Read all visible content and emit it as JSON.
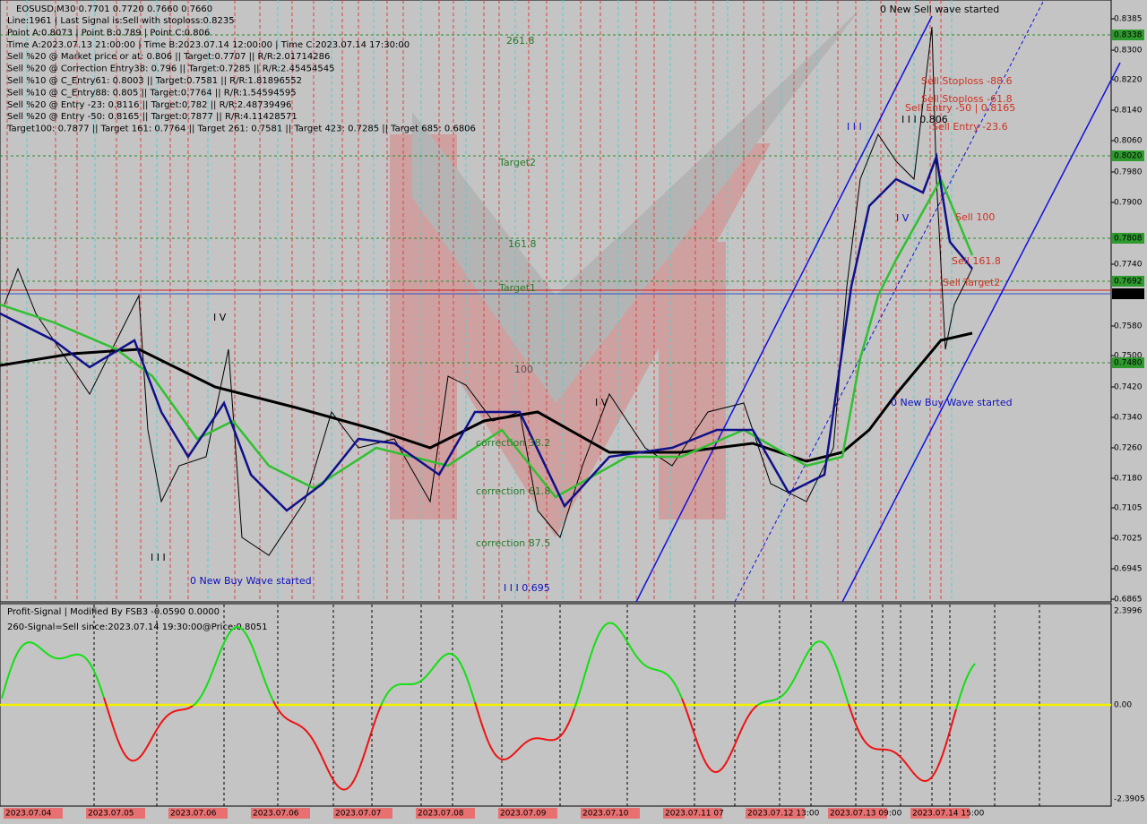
{
  "header": {
    "symbol": "EOSUSD,M30  0.7701 0.7720 0.7660 0.7660",
    "lines": [
      "Line:1961 | Last Signal is:Sell with stoploss:0.8235",
      "Point A:0.8073 | Point B:0.789 | Point C:0.806",
      "Time A:2023.07.13 21:00:00 | Time B:2023.07.14 12:00:00 | Time C:2023.07.14 17:30:00",
      "Sell %20 @ Market price or at: 0.806 || Target:0.7707 || R/R:2.01714286",
      "Sell %20 @ Correction Entry38: 0.796 || Target:0.7285 || R/R:2.45454545",
      "Sell %10 @ C_Entry61: 0.8003 || Target:0.7581 || R/R:1.81896552",
      "Sell %10 @ C_Entry88: 0.805 || Target:0.7764 || R/R:1.54594595",
      "Sell %20 @ Entry -23: 0.8116 || Target:0.782 || R/R:2.48739496",
      "Sell %20 @ Entry -50: 0.8165 || Target:0.7877 || R/R:4.11428571",
      "Target100: 0.7877 || Target 161: 0.7764 || Target 261: 0.7581 || Target 423: 0.7285 || Target 685: 0.6806"
    ]
  },
  "price_axis": [
    "0.8385",
    "0.8300",
    "0.8220",
    "0.8140",
    "0.8060",
    "0.7980",
    "0.7900",
    "0.7740",
    "0.7580",
    "0.7500",
    "0.7420",
    "0.7340",
    "0.7260",
    "0.7180",
    "0.7105",
    "0.7025",
    "0.6945",
    "0.6865"
  ],
  "levels": [
    "0.8338",
    "0.8020",
    "0.7808",
    "0.7692",
    "0.7480"
  ],
  "current_price": "0.7660",
  "annotations": [
    "261.8",
    "Target2",
    "161.8",
    "Target1",
    "100",
    "0 New Sell wave started",
    "Sell Stoploss -88.6",
    "Sell Stoploss -61.8",
    "Sell Entry -50 | 0.8165",
    "Sell Entry -23.6",
    "Sell 100",
    "Sell 161.8",
    "Sell Target2",
    "I I I 0.806",
    "0 New Buy Wave started",
    "0 New Buy Wave started",
    "correction 38.2",
    "correction 61.8",
    "correction 87.5",
    "I I I 0.695",
    "I V",
    "I I I",
    "I V",
    "I I I",
    "I V"
  ],
  "indicator": {
    "title": "Profit-Signal | Modified By FSB3 -0.0590 0.0000",
    "signal": "260-Signal=Sell since:2023.07.14 19:30:00@Price:0.8051",
    "axis": [
      "2.3996",
      "0.00",
      "-2.3905"
    ]
  },
  "time_axis": [
    "2023.07.04",
    "2023.07.05",
    "2023.07.06",
    "2023.07.06",
    "2023.07.07",
    "2023.07.08",
    "2023.07.09",
    "2023.07.10",
    "2023.07.11 07",
    "2023.07.12 13:00",
    "2023.07.13 09:00",
    "2023.07.14 15:00"
  ]
}
